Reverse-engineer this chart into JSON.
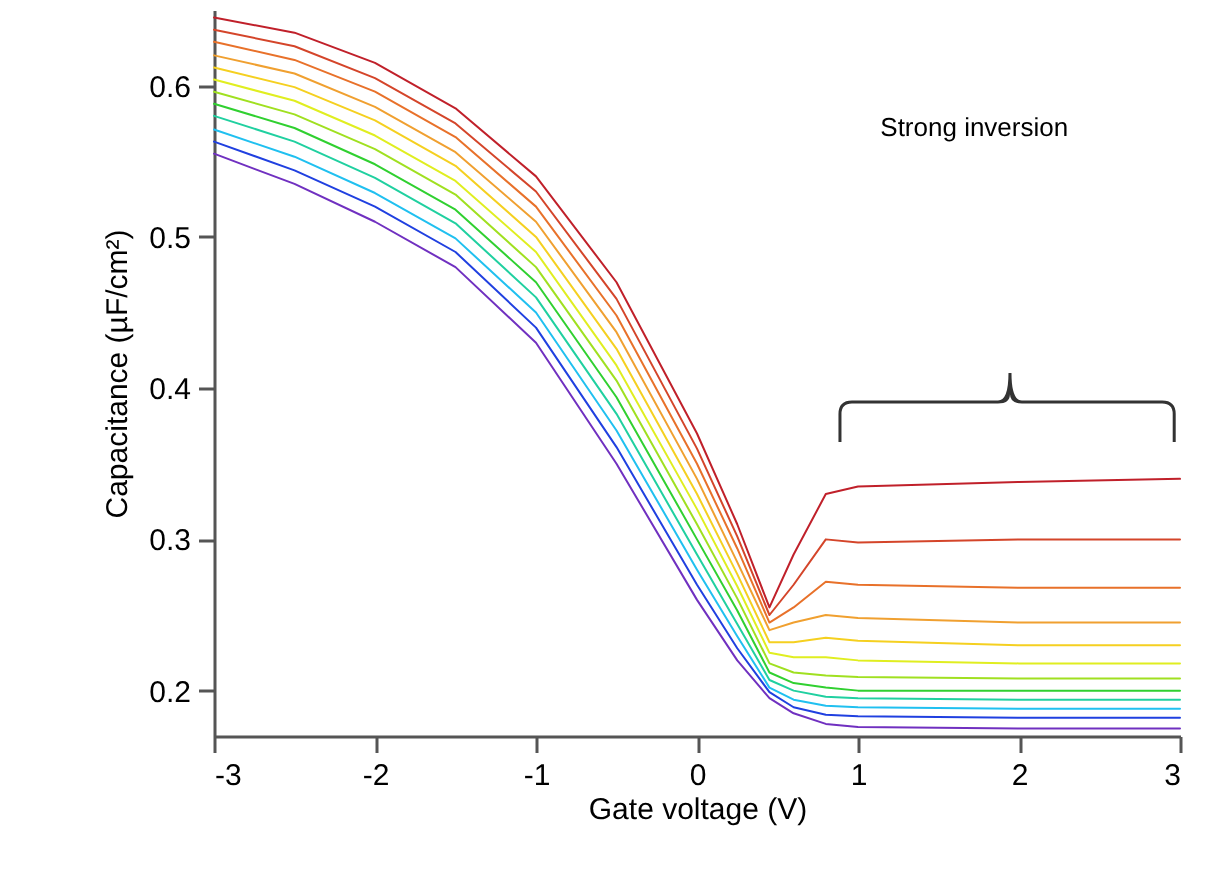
{
  "chart_data": {
    "type": "line",
    "xlabel": "Gate voltage (V)",
    "ylabel": "Capacitance (µF/cm²)",
    "x": [
      -3,
      -2.5,
      -2,
      -1.5,
      -1,
      -0.5,
      0,
      0.25,
      0.45,
      0.6,
      0.8,
      1,
      2,
      3
    ],
    "xlim": [
      -3,
      3
    ],
    "xticks": [
      -3,
      -2,
      -1,
      0,
      1,
      2,
      3
    ],
    "ylim": [
      0.17,
      0.65
    ],
    "yticks": [
      0.2,
      0.3,
      0.4,
      0.5,
      0.6
    ],
    "grid": false,
    "annotations": [
      "Strong inversion"
    ],
    "series": [
      {
        "color": "#c0202a",
        "values": [
          0.645,
          0.635,
          0.615,
          0.585,
          0.54,
          0.47,
          0.37,
          0.31,
          0.255,
          0.29,
          0.33,
          0.335,
          0.338,
          0.34
        ]
      },
      {
        "color": "#d4452a",
        "values": [
          0.637,
          0.626,
          0.605,
          0.575,
          0.53,
          0.459,
          0.36,
          0.302,
          0.25,
          0.27,
          0.3,
          0.298,
          0.3,
          0.3
        ]
      },
      {
        "color": "#e8712a",
        "values": [
          0.629,
          0.617,
          0.596,
          0.566,
          0.52,
          0.448,
          0.35,
          0.294,
          0.245,
          0.255,
          0.272,
          0.27,
          0.268,
          0.268
        ]
      },
      {
        "color": "#f0a030",
        "values": [
          0.62,
          0.608,
          0.586,
          0.556,
          0.51,
          0.437,
          0.34,
          0.285,
          0.24,
          0.245,
          0.25,
          0.248,
          0.245,
          0.245
        ]
      },
      {
        "color": "#f5d020",
        "values": [
          0.612,
          0.599,
          0.577,
          0.547,
          0.5,
          0.426,
          0.33,
          0.277,
          0.232,
          0.232,
          0.235,
          0.233,
          0.23,
          0.23
        ]
      },
      {
        "color": "#e0ee20",
        "values": [
          0.604,
          0.59,
          0.567,
          0.537,
          0.49,
          0.415,
          0.32,
          0.269,
          0.225,
          0.222,
          0.222,
          0.22,
          0.218,
          0.218
        ]
      },
      {
        "color": "#a0e020",
        "values": [
          0.596,
          0.581,
          0.558,
          0.528,
          0.48,
          0.405,
          0.31,
          0.261,
          0.218,
          0.212,
          0.21,
          0.209,
          0.208,
          0.208
        ]
      },
      {
        "color": "#30d030",
        "values": [
          0.588,
          0.572,
          0.548,
          0.518,
          0.47,
          0.394,
          0.3,
          0.253,
          0.212,
          0.205,
          0.202,
          0.2,
          0.2,
          0.2
        ]
      },
      {
        "color": "#20d0a0",
        "values": [
          0.58,
          0.563,
          0.539,
          0.509,
          0.46,
          0.383,
          0.29,
          0.244,
          0.207,
          0.2,
          0.196,
          0.195,
          0.194,
          0.194
        ]
      },
      {
        "color": "#20c0f0",
        "values": [
          0.571,
          0.553,
          0.529,
          0.499,
          0.45,
          0.372,
          0.28,
          0.236,
          0.202,
          0.194,
          0.19,
          0.189,
          0.188,
          0.188
        ]
      },
      {
        "color": "#2040e0",
        "values": [
          0.563,
          0.544,
          0.52,
          0.49,
          0.44,
          0.361,
          0.27,
          0.228,
          0.199,
          0.189,
          0.184,
          0.183,
          0.182,
          0.182
        ]
      },
      {
        "color": "#7030c0",
        "values": [
          0.555,
          0.535,
          0.51,
          0.48,
          0.43,
          0.35,
          0.26,
          0.22,
          0.195,
          0.185,
          0.178,
          0.176,
          0.175,
          0.175
        ]
      }
    ]
  }
}
